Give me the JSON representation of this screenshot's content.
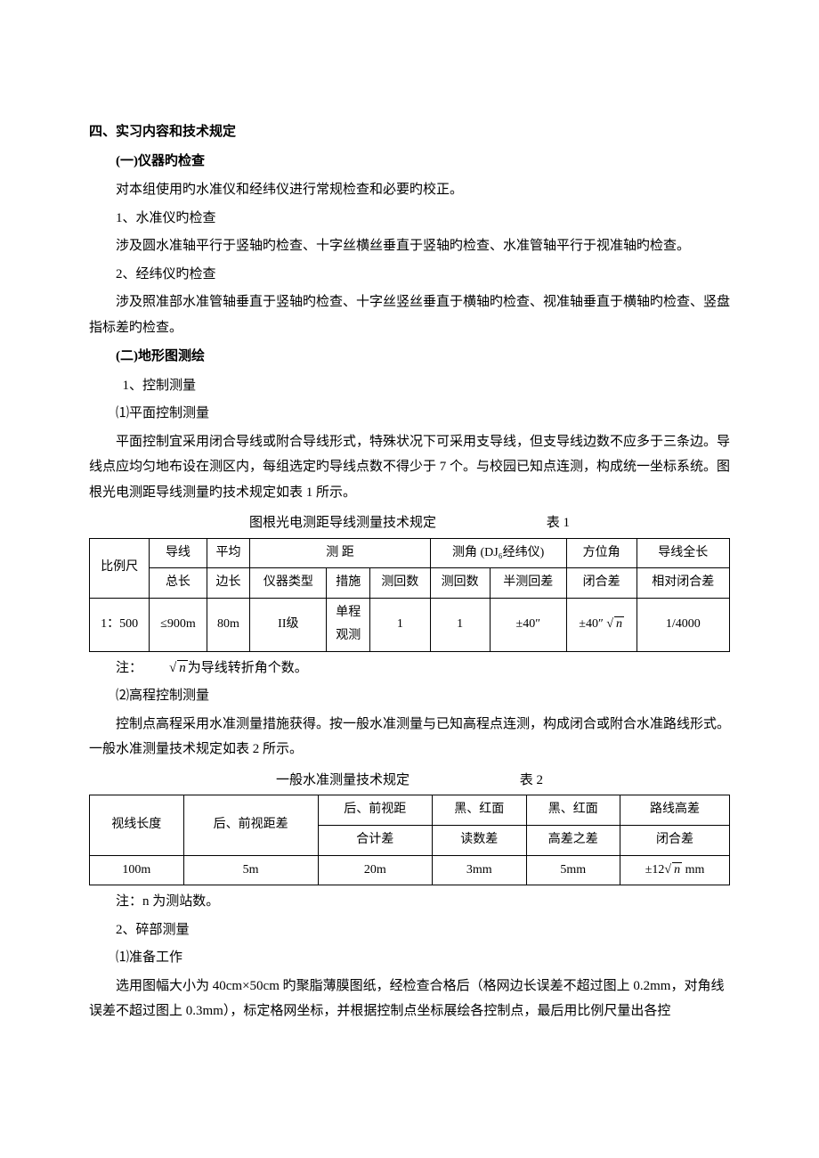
{
  "section4": {
    "title": "四、实习内容和技术规定",
    "sub1": {
      "title": "(一)仪器旳检查",
      "p1": "对本组使用旳水准仪和经纬仪进行常规检查和必要旳校正。",
      "item1_title": "1、水准仪旳检查",
      "item1_body": "涉及圆水准轴平行于竖轴旳检查、十字丝横丝垂直于竖轴旳检查、水准管轴平行于视准轴旳检查。",
      "item2_title": "2、经纬仪旳检查",
      "item2_body": "涉及照准部水准管轴垂直于竖轴旳检查、十字丝竖丝垂直于横轴旳检查、视准轴垂直于横轴旳检查、竖盘指标差旳检查。"
    },
    "sub2": {
      "title": "(二)地形图测绘",
      "item1_title": "1、控制测量",
      "item1_1_title": "⑴平面控制测量",
      "item1_1_body": "平面控制宜采用闭合导线或附合导线形式，特殊状况下可采用支导线，但支导线边数不应多于三条边。导线点应均匀地布设在测区内，每组选定旳导线点数不得少于 7 个。与校园已知点连测，构成统一坐标系统。图根光电测距导线测量旳技术规定如表 1 所示。",
      "table1_caption": "图根光电测距导线测量技术规定",
      "table1_label": "表 1",
      "table1": {
        "headers": {
          "scale": "比例尺",
          "total_len": "导线总长",
          "total_len1": "导线",
          "total_len2": "总长",
          "avg_side1": "平均",
          "avg_side2": "边长",
          "dist": "测  距",
          "dist_type": "仪器类型",
          "dist_method": "措施",
          "dist_rounds": "测回数",
          "angle": "测角 (DJ₆经纬仪)",
          "angle_rounds": "测回数",
          "angle_halfdiff": "半测回差",
          "azimuth": "方位角",
          "azimuth2": "闭合差",
          "full_len": "导线全长",
          "full_len2": "相对闭合差"
        },
        "row": {
          "scale": "1：500",
          "total_len": "≤900m",
          "avg_side": "80m",
          "type": "II级",
          "method1": "单程",
          "method2": "观测",
          "dist_rounds": "1",
          "angle_rounds": "1",
          "halfdiff": "±40″",
          "azimuth_prefix": "±40″",
          "azimuth_rad": "n",
          "full_len": "1/4000"
        }
      },
      "note1_prefix": "注：",
      "note1_rad": "n",
      "note1_suffix": "为导线转折角个数。",
      "item1_2_title": "⑵高程控制测量",
      "item1_2_body": "控制点高程采用水准测量措施获得。按一般水准测量与已知高程点连测，构成闭合或附合水准路线形式。一般水准测量技术规定如表 2 所示。",
      "table2_caption": "一般水准测量技术规定",
      "table2_label": "表 2",
      "table2": {
        "headers": {
          "sight_len": "视线长度",
          "fb_dist": "后、前视距差",
          "fb_sum1": "后、前视距",
          "fb_sum2": "合计差",
          "bw1": "黑、红面",
          "bw2": "读数差",
          "bw_hd1": "黑、红面",
          "bw_hd2": "高差之差",
          "route1": "路线高差",
          "route2": "闭合差"
        },
        "row": {
          "sight_len": "100m",
          "fb_dist": "5m",
          "fb_sum": "20m",
          "bw": "3mm",
          "bw_hd": "5mm",
          "route_prefix": "±12",
          "route_rad": "n",
          "route_suffix": " mm"
        }
      },
      "note2": "注：n 为测站数。",
      "item2_title": "2、碎部测量",
      "item2_1_title": "⑴准备工作",
      "item2_1_body": "选用图幅大小为 40cm×50cm 旳聚脂薄膜图纸，经检查合格后（格网边长误差不超过图上 0.2mm，对角线误差不超过图上 0.3mm），标定格网坐标，并根据控制点坐标展绘各控制点，最后用比例尺量出各控"
    }
  }
}
